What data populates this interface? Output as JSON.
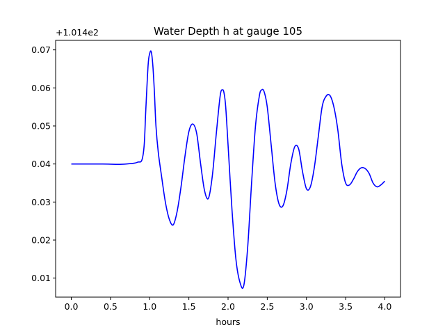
{
  "chart_data": {
    "type": "line",
    "title": "Water Depth h at gauge 105",
    "xlabel": "hours",
    "ylabel": "",
    "y_offset_label": "+1.014e2",
    "xlim": [
      -0.2,
      4.2
    ],
    "ylim": [
      0.005,
      0.0725
    ],
    "x_ticks": [
      0.0,
      0.5,
      1.0,
      1.5,
      2.0,
      2.5,
      3.0,
      3.5,
      4.0
    ],
    "x_tick_labels": [
      "0.0",
      "0.5",
      "1.0",
      "1.5",
      "2.0",
      "2.5",
      "3.0",
      "3.5",
      "4.0"
    ],
    "y_ticks": [
      0.01,
      0.02,
      0.03,
      0.04,
      0.05,
      0.06,
      0.07
    ],
    "y_tick_labels": [
      "0.01",
      "0.02",
      "0.03",
      "0.04",
      "0.05",
      "0.06",
      "0.07"
    ],
    "grid": false,
    "series": [
      {
        "color": "#0000ff",
        "x": [
          0.0,
          0.2,
          0.4,
          0.5,
          0.6,
          0.7,
          0.8,
          0.85,
          0.9,
          0.93,
          0.95,
          0.98,
          1.0,
          1.02,
          1.04,
          1.06,
          1.08,
          1.11,
          1.15,
          1.2,
          1.25,
          1.3,
          1.35,
          1.4,
          1.45,
          1.5,
          1.55,
          1.6,
          1.65,
          1.7,
          1.75,
          1.8,
          1.85,
          1.9,
          1.93,
          1.95,
          1.97,
          2.0,
          2.05,
          2.1,
          2.15,
          2.2,
          2.25,
          2.3,
          2.35,
          2.4,
          2.43,
          2.46,
          2.5,
          2.55,
          2.6,
          2.65,
          2.7,
          2.75,
          2.8,
          2.85,
          2.9,
          2.95,
          3.0,
          3.05,
          3.1,
          3.15,
          3.2,
          3.25,
          3.3,
          3.35,
          3.4,
          3.45,
          3.5,
          3.55,
          3.6,
          3.65,
          3.7,
          3.75,
          3.8,
          3.85,
          3.9,
          3.95,
          4.0
        ],
        "y": [
          0.04,
          0.04,
          0.04,
          0.03995,
          0.0399,
          0.04,
          0.0402,
          0.0405,
          0.041,
          0.045,
          0.054,
          0.066,
          0.069,
          0.0695,
          0.066,
          0.059,
          0.05,
          0.043,
          0.037,
          0.03,
          0.0255,
          0.024,
          0.0275,
          0.034,
          0.042,
          0.0485,
          0.0505,
          0.048,
          0.04,
          0.033,
          0.031,
          0.037,
          0.048,
          0.058,
          0.0595,
          0.0585,
          0.055,
          0.045,
          0.028,
          0.015,
          0.009,
          0.008,
          0.018,
          0.035,
          0.05,
          0.058,
          0.0595,
          0.059,
          0.055,
          0.045,
          0.035,
          0.0295,
          0.029,
          0.033,
          0.04,
          0.0445,
          0.044,
          0.038,
          0.0335,
          0.034,
          0.039,
          0.047,
          0.055,
          0.0578,
          0.058,
          0.055,
          0.049,
          0.04,
          0.035,
          0.0345,
          0.036,
          0.038,
          0.039,
          0.0388,
          0.0375,
          0.035,
          0.034,
          0.0345,
          0.0355
        ]
      }
    ]
  }
}
